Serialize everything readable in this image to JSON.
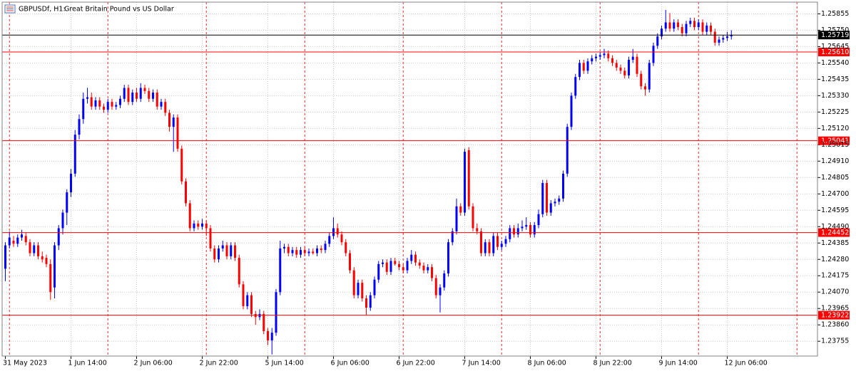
{
  "chart_data": {
    "type": "candlestick",
    "symbol": "GBPUSDf, H1:",
    "description": "Great Britain Pound vs US Dollar",
    "up_color": "#0000ff",
    "down_color": "#ff0000",
    "grid": true,
    "ylim": [
      1.2366,
      1.2593
    ],
    "yticks": [
      1.23755,
      {
        "value": 1.2386,
        "label": "1.23860"
      },
      1.23965,
      {
        "value": 1.2407,
        "label": "1.24070"
      },
      1.24175,
      {
        "value": 1.2428,
        "label": "1.24280"
      },
      1.24385,
      {
        "value": 1.2449,
        "label": "1.24490"
      },
      1.24595,
      {
        "value": 1.247,
        "label": "1.24700"
      },
      1.24805,
      {
        "value": 1.2491,
        "label": "1.24910"
      },
      1.25015,
      {
        "value": 1.2512,
        "label": "1.25120"
      },
      1.25225,
      {
        "value": 1.2533,
        "label": "1.25330"
      },
      1.25435,
      {
        "value": 1.2554,
        "label": "1.25540"
      },
      1.25645,
      {
        "value": 1.2575,
        "label": "1.25750"
      },
      1.25855
    ],
    "xlabels": [
      "31 May 2023",
      "1 Jun 14:00",
      "2 Jun 06:00",
      "2 Jun 22:00",
      "5 Jun 14:00",
      "6 Jun 06:00",
      "6 Jun 22:00",
      "7 Jun 14:00",
      "8 Jun 06:00",
      "8 Jun 22:00",
      "9 Jun 14:00",
      "12 Jun 06:00"
    ],
    "hlines": [
      {
        "value": 1.25719,
        "label": "1.25719",
        "color": "#000000"
      },
      {
        "value": 1.2561,
        "label": "1.25610",
        "color": "#ff0000"
      },
      {
        "value": 1.25041,
        "label": "1.25041",
        "color": "#ff0000"
      },
      {
        "value": 1.24452,
        "label": "1.24452",
        "color": "#ff0000"
      },
      {
        "value": 1.23922,
        "label": "1.23922",
        "color": "#ff0000"
      }
    ],
    "ohlc": [
      [
        1.2422,
        1.2439,
        1.2414,
        1.2437
      ],
      [
        1.2437,
        1.2446,
        1.2435,
        1.2442
      ],
      [
        1.244,
        1.2443,
        1.2436,
        1.2438
      ],
      [
        1.2438,
        1.2444,
        1.2436,
        1.2442
      ],
      [
        1.2442,
        1.2447,
        1.244,
        1.2444
      ],
      [
        1.2443,
        1.2445,
        1.2437,
        1.2439
      ],
      [
        1.2439,
        1.2441,
        1.243,
        1.2432
      ],
      [
        1.2432,
        1.2439,
        1.243,
        1.2437
      ],
      [
        1.2437,
        1.2439,
        1.2428,
        1.243
      ],
      [
        1.243,
        1.2433,
        1.2426,
        1.2428
      ],
      [
        1.2429,
        1.2431,
        1.2423,
        1.2425
      ],
      [
        1.2425,
        1.2428,
        1.2402,
        1.2407
      ],
      [
        1.241,
        1.2439,
        1.2403,
        1.2437
      ],
      [
        1.2437,
        1.245,
        1.2434,
        1.2448
      ],
      [
        1.2448,
        1.246,
        1.2444,
        1.2458
      ],
      [
        1.2458,
        1.2473,
        1.245,
        1.2471
      ],
      [
        1.2471,
        1.2486,
        1.2468,
        1.2483
      ],
      [
        1.2483,
        1.2511,
        1.2481,
        1.2508
      ],
      [
        1.2508,
        1.2521,
        1.2505,
        1.2518
      ],
      [
        1.2518,
        1.2535,
        1.2515,
        1.2531
      ],
      [
        1.2531,
        1.2538,
        1.2528,
        1.2532
      ],
      [
        1.2532,
        1.2535,
        1.2524,
        1.2526
      ],
      [
        1.2526,
        1.2532,
        1.2524,
        1.253
      ],
      [
        1.253,
        1.2532,
        1.2524,
        1.2526
      ],
      [
        1.2526,
        1.2528,
        1.2522,
        1.2524
      ],
      [
        1.2524,
        1.2531,
        1.2522,
        1.2529
      ],
      [
        1.2529,
        1.2531,
        1.2524,
        1.2526
      ],
      [
        1.2526,
        1.2529,
        1.2524,
        1.2527
      ],
      [
        1.2527,
        1.2533,
        1.2525,
        1.2531
      ],
      [
        1.2531,
        1.254,
        1.2529,
        1.2538
      ],
      [
        1.2538,
        1.254,
        1.2527,
        1.2529
      ],
      [
        1.2529,
        1.2537,
        1.2527,
        1.2535
      ],
      [
        1.2535,
        1.2538,
        1.2529,
        1.2531
      ],
      [
        1.2531,
        1.2541,
        1.2529,
        1.2538
      ],
      [
        1.2538,
        1.254,
        1.2534,
        1.2536
      ],
      [
        1.2536,
        1.2538,
        1.2529,
        1.2531
      ],
      [
        1.2531,
        1.2537,
        1.2529,
        1.2535
      ],
      [
        1.2535,
        1.2537,
        1.2524,
        1.2526
      ],
      [
        1.2526,
        1.2531,
        1.2524,
        1.2529
      ],
      [
        1.2529,
        1.2531,
        1.252,
        1.2522
      ],
      [
        1.2522,
        1.2524,
        1.251,
        1.2513
      ],
      [
        1.2513,
        1.2521,
        1.2497,
        1.2519
      ],
      [
        1.2519,
        1.2521,
        1.2497,
        1.2499
      ],
      [
        1.2499,
        1.2501,
        1.2476,
        1.2478
      ],
      [
        1.2478,
        1.248,
        1.2462,
        1.2464
      ],
      [
        1.2464,
        1.2466,
        1.2446,
        1.2448
      ],
      [
        1.2448,
        1.2453,
        1.2446,
        1.2451
      ],
      [
        1.2451,
        1.2453,
        1.2447,
        1.2449
      ],
      [
        1.2449,
        1.2454,
        1.2447,
        1.2451
      ],
      [
        1.2451,
        1.2453,
        1.2443,
        1.2448
      ],
      [
        1.2448,
        1.245,
        1.2433,
        1.2435
      ],
      [
        1.2435,
        1.2437,
        1.2426,
        1.2428
      ],
      [
        1.2428,
        1.2437,
        1.2426,
        1.2435
      ],
      [
        1.2435,
        1.244,
        1.2433,
        1.2437
      ],
      [
        1.2437,
        1.2439,
        1.2428,
        1.243
      ],
      [
        1.243,
        1.2439,
        1.2428,
        1.2437
      ],
      [
        1.2437,
        1.2439,
        1.2427,
        1.2429
      ],
      [
        1.2429,
        1.2431,
        1.241,
        1.2412
      ],
      [
        1.2412,
        1.2414,
        1.2396,
        1.2398
      ],
      [
        1.2398,
        1.2407,
        1.2396,
        1.2405
      ],
      [
        1.2405,
        1.2407,
        1.2391,
        1.2393
      ],
      [
        1.2393,
        1.2395,
        1.2386,
        1.2391
      ],
      [
        1.2391,
        1.2396,
        1.2389,
        1.2393
      ],
      [
        1.2393,
        1.2395,
        1.238,
        1.2382
      ],
      [
        1.2382,
        1.2384,
        1.2373,
        1.2376
      ],
      [
        1.2376,
        1.2384,
        1.2367,
        1.2381
      ],
      [
        1.2381,
        1.2409,
        1.2379,
        1.2407
      ],
      [
        1.2407,
        1.244,
        1.2405,
        1.2435
      ],
      [
        1.2435,
        1.2438,
        1.2432,
        1.2436
      ],
      [
        1.2436,
        1.2438,
        1.243,
        1.2432
      ],
      [
        1.2432,
        1.2436,
        1.243,
        1.2434
      ],
      [
        1.2434,
        1.2436,
        1.2429,
        1.2431
      ],
      [
        1.2431,
        1.2436,
        1.2429,
        1.2434
      ],
      [
        1.2434,
        1.2436,
        1.243,
        1.2432
      ],
      [
        1.2432,
        1.2435,
        1.243,
        1.2433
      ],
      [
        1.2433,
        1.2435,
        1.2431,
        1.2432
      ],
      [
        1.2432,
        1.2437,
        1.243,
        1.2435
      ],
      [
        1.2435,
        1.2437,
        1.2432,
        1.2434
      ],
      [
        1.2434,
        1.244,
        1.2432,
        1.2438
      ],
      [
        1.2438,
        1.2445,
        1.2436,
        1.2443
      ],
      [
        1.2443,
        1.2455,
        1.2441,
        1.2448
      ],
      [
        1.2448,
        1.2451,
        1.2442,
        1.2444
      ],
      [
        1.2444,
        1.2446,
        1.2437,
        1.2439
      ],
      [
        1.2439,
        1.2441,
        1.243,
        1.2432
      ],
      [
        1.2432,
        1.2434,
        1.2419,
        1.2421
      ],
      [
        1.2421,
        1.2423,
        1.2403,
        1.2405
      ],
      [
        1.2405,
        1.2415,
        1.2403,
        1.2413
      ],
      [
        1.2413,
        1.2415,
        1.2401,
        1.2403
      ],
      [
        1.2403,
        1.2405,
        1.2392,
        1.2397
      ],
      [
        1.2397,
        1.2407,
        1.2395,
        1.2405
      ],
      [
        1.2405,
        1.2417,
        1.2403,
        1.2415
      ],
      [
        1.2415,
        1.2427,
        1.2413,
        1.2425
      ],
      [
        1.2425,
        1.2428,
        1.2423,
        1.2426
      ],
      [
        1.2426,
        1.2428,
        1.2418,
        1.242
      ],
      [
        1.242,
        1.2429,
        1.2418,
        1.2427
      ],
      [
        1.2427,
        1.2429,
        1.2424,
        1.2425
      ],
      [
        1.2425,
        1.2427,
        1.2421,
        1.2423
      ],
      [
        1.2423,
        1.2425,
        1.2419,
        1.2421
      ],
      [
        1.2421,
        1.2429,
        1.2419,
        1.2427
      ],
      [
        1.2427,
        1.2434,
        1.2425,
        1.2431
      ],
      [
        1.2431,
        1.2433,
        1.2424,
        1.2426
      ],
      [
        1.2426,
        1.2428,
        1.2422,
        1.2424
      ],
      [
        1.2424,
        1.2426,
        1.2419,
        1.2421
      ],
      [
        1.2421,
        1.2425,
        1.2419,
        1.2423
      ],
      [
        1.2423,
        1.2425,
        1.2414,
        1.2416
      ],
      [
        1.2416,
        1.2418,
        1.2403,
        1.2405
      ],
      [
        1.2405,
        1.2412,
        1.2394,
        1.241
      ],
      [
        1.241,
        1.2421,
        1.2408,
        1.2419
      ],
      [
        1.2419,
        1.2441,
        1.2417,
        1.2439
      ],
      [
        1.2439,
        1.2448,
        1.2437,
        1.2446
      ],
      [
        1.2446,
        1.2467,
        1.2444,
        1.2462
      ],
      [
        1.2462,
        1.2464,
        1.2456,
        1.2458
      ],
      [
        1.2458,
        1.2499,
        1.2456,
        1.2497
      ],
      [
        1.2498,
        1.25,
        1.246,
        1.2462
      ],
      [
        1.2462,
        1.2464,
        1.2446,
        1.2448
      ],
      [
        1.2448,
        1.2451,
        1.2444,
        1.2446
      ],
      [
        1.2446,
        1.2448,
        1.243,
        1.2432
      ],
      [
        1.2432,
        1.2441,
        1.243,
        1.2439
      ],
      [
        1.2439,
        1.2441,
        1.243,
        1.2432
      ],
      [
        1.2432,
        1.2445,
        1.243,
        1.2443
      ],
      [
        1.2443,
        1.2445,
        1.2434,
        1.2436
      ],
      [
        1.2436,
        1.244,
        1.2434,
        1.2438
      ],
      [
        1.2438,
        1.2443,
        1.2436,
        1.2441
      ],
      [
        1.2441,
        1.245,
        1.2439,
        1.2448
      ],
      [
        1.2448,
        1.245,
        1.2442,
        1.2444
      ],
      [
        1.2444,
        1.2451,
        1.2442,
        1.2448
      ],
      [
        1.2448,
        1.2453,
        1.2446,
        1.2449
      ],
      [
        1.2449,
        1.2455,
        1.2447,
        1.245
      ],
      [
        1.245,
        1.2452,
        1.2442,
        1.2444
      ],
      [
        1.2444,
        1.2452,
        1.2442,
        1.245
      ],
      [
        1.245,
        1.246,
        1.2448,
        1.2457
      ],
      [
        1.2457,
        1.2479,
        1.2455,
        1.2477
      ],
      [
        1.2477,
        1.2479,
        1.2456,
        1.2458
      ],
      [
        1.2458,
        1.2466,
        1.2456,
        1.2464
      ],
      [
        1.2464,
        1.2467,
        1.2462,
        1.2465
      ],
      [
        1.2465,
        1.2469,
        1.2463,
        1.2467
      ],
      [
        1.2467,
        1.2485,
        1.2465,
        1.2483
      ],
      [
        1.2483,
        1.2515,
        1.2481,
        1.2513
      ],
      [
        1.2513,
        1.2535,
        1.2511,
        1.2533
      ],
      [
        1.2533,
        1.2547,
        1.2531,
        1.2545
      ],
      [
        1.2545,
        1.2556,
        1.2543,
        1.2554
      ],
      [
        1.2554,
        1.2556,
        1.2547,
        1.2549
      ],
      [
        1.2549,
        1.2557,
        1.2547,
        1.2555
      ],
      [
        1.2555,
        1.2559,
        1.2553,
        1.2557
      ],
      [
        1.2557,
        1.256,
        1.2555,
        1.2558
      ],
      [
        1.2558,
        1.2561,
        1.2556,
        1.2559
      ],
      [
        1.2559,
        1.2563,
        1.2557,
        1.256
      ],
      [
        1.256,
        1.2562,
        1.2555,
        1.2557
      ],
      [
        1.2557,
        1.2559,
        1.2552,
        1.2554
      ],
      [
        1.2554,
        1.2556,
        1.2549,
        1.2551
      ],
      [
        1.2551,
        1.2553,
        1.2547,
        1.2549
      ],
      [
        1.2549,
        1.2551,
        1.2544,
        1.2546
      ],
      [
        1.2546,
        1.2558,
        1.2544,
        1.2556
      ],
      [
        1.2556,
        1.2563,
        1.2554,
        1.2558
      ],
      [
        1.2558,
        1.256,
        1.2545,
        1.2547
      ],
      [
        1.2547,
        1.2549,
        1.2537,
        1.2539
      ],
      [
        1.2539,
        1.2541,
        1.2533,
        1.2537
      ],
      [
        1.2537,
        1.2556,
        1.2535,
        1.2554
      ],
      [
        1.2554,
        1.2567,
        1.2552,
        1.2565
      ],
      [
        1.2565,
        1.2573,
        1.2563,
        1.2571
      ],
      [
        1.2571,
        1.2578,
        1.2569,
        1.2576
      ],
      [
        1.2576,
        1.2588,
        1.2574,
        1.258
      ],
      [
        1.258,
        1.2586,
        1.2574,
        1.2576
      ],
      [
        1.2576,
        1.2582,
        1.2574,
        1.258
      ],
      [
        1.258,
        1.2582,
        1.2575,
        1.2577
      ],
      [
        1.2577,
        1.2579,
        1.2571,
        1.2573
      ],
      [
        1.2573,
        1.2581,
        1.2571,
        1.2579
      ],
      [
        1.2579,
        1.2583,
        1.2577,
        1.2581
      ],
      [
        1.2581,
        1.2583,
        1.2575,
        1.2577
      ],
      [
        1.2577,
        1.2582,
        1.2575,
        1.258
      ],
      [
        1.258,
        1.2582,
        1.2572,
        1.2574
      ],
      [
        1.2574,
        1.258,
        1.2572,
        1.2578
      ],
      [
        1.2578,
        1.258,
        1.2572,
        1.2574
      ],
      [
        1.2574,
        1.2576,
        1.2565,
        1.2567
      ],
      [
        1.2567,
        1.2571,
        1.2565,
        1.2569
      ],
      [
        1.2569,
        1.2572,
        1.2567,
        1.257
      ],
      [
        1.257,
        1.2574,
        1.2568,
        1.2571
      ],
      [
        1.2571,
        1.2575,
        1.2569,
        1.25719
      ]
    ]
  }
}
